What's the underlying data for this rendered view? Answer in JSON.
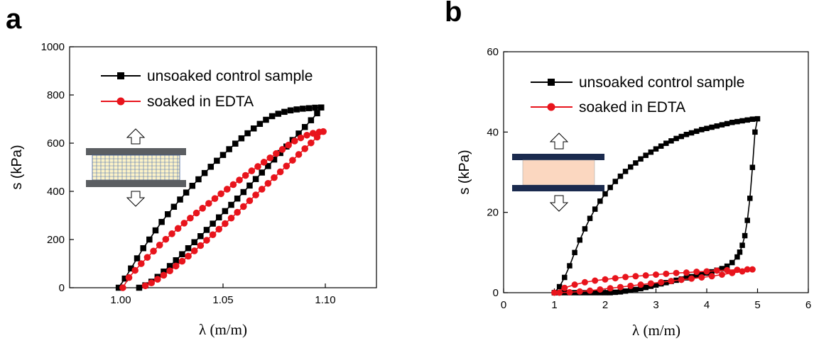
{
  "figure": {
    "panel_a_letter": "a",
    "panel_b_letter": "b"
  },
  "chart_data": [
    {
      "type": "line",
      "panel": "a",
      "xlabel": "λ (m/m)",
      "ylabel": "s (kPa)",
      "xlim": [
        0.975,
        1.125
      ],
      "ylim": [
        0,
        1000
      ],
      "xticks": [
        1.0,
        1.05,
        1.1
      ],
      "xtick_labels": [
        "1.00",
        "1.05",
        "1.10"
      ],
      "yticks": [
        0,
        200,
        400,
        600,
        800,
        1000
      ],
      "ytick_labels": [
        "0",
        "200",
        "400",
        "600",
        "800",
        "1000"
      ],
      "legend_position": "top-left",
      "grid": false,
      "series": [
        {
          "name": "unsoaked control sample",
          "color": "#000000",
          "marker": "square",
          "x": [
            0.999,
            1.002,
            1.005,
            1.008,
            1.011,
            1.014,
            1.017,
            1.02,
            1.023,
            1.026,
            1.029,
            1.032,
            1.035,
            1.038,
            1.041,
            1.044,
            1.047,
            1.05,
            1.053,
            1.056,
            1.059,
            1.062,
            1.065,
            1.068,
            1.071,
            1.074,
            1.077,
            1.08,
            1.083,
            1.086,
            1.089,
            1.092,
            1.095,
            1.098,
            1.096,
            1.093,
            1.09,
            1.087,
            1.084,
            1.081,
            1.078,
            1.075,
            1.072,
            1.069,
            1.066,
            1.063,
            1.06,
            1.057,
            1.054,
            1.051,
            1.048,
            1.045,
            1.042,
            1.039,
            1.036,
            1.033,
            1.03,
            1.027,
            1.024,
            1.021,
            1.018,
            1.015,
            1.012,
            1.009
          ],
          "y": [
            0,
            38,
            80,
            122,
            164,
            200,
            238,
            273,
            305,
            336,
            366,
            395,
            423,
            450,
            476,
            502,
            527,
            551,
            575,
            598,
            620,
            641,
            661,
            680,
            697,
            712,
            722,
            730,
            736,
            740,
            743,
            745,
            747,
            748,
            724,
            695,
            667,
            640,
            613,
            586,
            559,
            532,
            505,
            478,
            451,
            424,
            397,
            370,
            344,
            318,
            292,
            266,
            240,
            214,
            189,
            164,
            139,
            114,
            90,
            67,
            45,
            25,
            10,
            0
          ]
        },
        {
          "name": "soaked in EDTA",
          "color": "#e8141c",
          "marker": "circle",
          "x": [
            1.001,
            1.004,
            1.007,
            1.01,
            1.013,
            1.016,
            1.019,
            1.022,
            1.025,
            1.028,
            1.031,
            1.034,
            1.037,
            1.04,
            1.043,
            1.046,
            1.049,
            1.052,
            1.055,
            1.058,
            1.061,
            1.064,
            1.067,
            1.07,
            1.073,
            1.076,
            1.079,
            1.082,
            1.085,
            1.088,
            1.091,
            1.094,
            1.097,
            1.099,
            1.096,
            1.093,
            1.09,
            1.087,
            1.084,
            1.081,
            1.078,
            1.075,
            1.072,
            1.069,
            1.066,
            1.063,
            1.06,
            1.057,
            1.054,
            1.051,
            1.048,
            1.045,
            1.042,
            1.039,
            1.036,
            1.033,
            1.03,
            1.027,
            1.024,
            1.021,
            1.018,
            1.015,
            1.012
          ],
          "y": [
            0,
            42,
            72,
            100,
            126,
            152,
            177,
            201,
            224,
            246,
            268,
            289,
            310,
            330,
            350,
            370,
            390,
            409,
            428,
            447,
            466,
            485,
            503,
            521,
            539,
            557,
            574,
            592,
            609,
            622,
            633,
            641,
            646,
            648,
            625,
            601,
            577,
            553,
            529,
            505,
            481,
            457,
            433,
            409,
            385,
            361,
            337,
            313,
            289,
            266,
            243,
            220,
            197,
            175,
            153,
            131,
            110,
            90,
            70,
            52,
            35,
            20,
            8
          ]
        }
      ]
    },
    {
      "type": "line",
      "panel": "b",
      "xlabel": "λ (m/m)",
      "ylabel": "s (kPa)",
      "xlim": [
        0,
        6
      ],
      "ylim": [
        0,
        60
      ],
      "xticks": [
        0,
        1,
        2,
        3,
        4,
        5,
        6
      ],
      "xtick_labels": [
        "0",
        "1",
        "2",
        "3",
        "4",
        "5",
        "6"
      ],
      "yticks": [
        0,
        20,
        40,
        60
      ],
      "ytick_labels": [
        "0",
        "20",
        "40",
        "60"
      ],
      "legend_position": "top-left",
      "grid": false,
      "series": [
        {
          "name": "unsoaked control sample",
          "color": "#000000",
          "marker": "square",
          "x": [
            1.0,
            1.1,
            1.2,
            1.3,
            1.4,
            1.5,
            1.6,
            1.7,
            1.8,
            1.9,
            2.0,
            2.1,
            2.2,
            2.3,
            2.4,
            2.5,
            2.6,
            2.7,
            2.8,
            2.9,
            3.0,
            3.1,
            3.2,
            3.3,
            3.4,
            3.5,
            3.6,
            3.7,
            3.8,
            3.9,
            4.0,
            4.1,
            4.2,
            4.3,
            4.4,
            4.5,
            4.6,
            4.7,
            4.8,
            4.9,
            5.0,
            4.95,
            4.9,
            4.85,
            4.8,
            4.75,
            4.7,
            4.65,
            4.6,
            4.5,
            4.4,
            4.3,
            4.2,
            4.1,
            4.0,
            3.9,
            3.8,
            3.7,
            3.6,
            3.5,
            3.4,
            3.3,
            3.2,
            3.1,
            3.0,
            2.9,
            2.8,
            2.7,
            2.6,
            2.5,
            2.4,
            2.3,
            2.2,
            2.1,
            2.0,
            1.9,
            1.8,
            1.7,
            1.6,
            1.5,
            1.4,
            1.3,
            1.2,
            1.1,
            1.0
          ],
          "y": [
            0,
            1.5,
            3.8,
            6.7,
            10.0,
            13.1,
            15.9,
            18.5,
            20.8,
            22.8,
            24.6,
            26.2,
            27.7,
            29.0,
            30.2,
            31.3,
            32.3,
            33.3,
            34.2,
            35.0,
            35.8,
            36.5,
            37.2,
            37.8,
            38.4,
            38.9,
            39.4,
            39.8,
            40.2,
            40.6,
            40.9,
            41.2,
            41.5,
            41.8,
            42.1,
            42.4,
            42.6,
            42.8,
            43.0,
            43.2,
            43.3,
            40.0,
            31.2,
            23.5,
            18.0,
            14.2,
            11.8,
            10.1,
            8.9,
            7.5,
            6.6,
            6.0,
            5.6,
            5.2,
            4.9,
            4.6,
            4.3,
            4.0,
            3.7,
            3.4,
            3.1,
            2.8,
            2.5,
            2.2,
            1.9,
            1.6,
            1.3,
            1.0,
            0.8,
            0.6,
            0.4,
            0.2,
            0.1,
            0,
            0,
            0,
            0,
            0,
            0,
            0,
            0,
            0,
            0,
            0,
            0
          ]
        },
        {
          "name": "soaked in EDTA",
          "color": "#e8141c",
          "marker": "circle",
          "x": [
            1.0,
            1.2,
            1.4,
            1.6,
            1.8,
            2.0,
            2.2,
            2.4,
            2.6,
            2.8,
            3.0,
            3.2,
            3.4,
            3.6,
            3.8,
            4.0,
            4.2,
            4.4,
            4.6,
            4.8,
            4.9,
            4.7,
            4.5,
            4.3,
            4.1,
            3.9,
            3.7,
            3.5,
            3.3,
            3.1,
            2.9,
            2.7,
            2.5,
            2.3,
            2.1,
            1.9,
            1.7,
            1.5,
            1.3,
            1.1
          ],
          "y": [
            0,
            1.2,
            2.0,
            2.6,
            3.0,
            3.3,
            3.6,
            3.9,
            4.1,
            4.3,
            4.5,
            4.7,
            4.9,
            5.0,
            5.2,
            5.3,
            5.5,
            5.6,
            5.7,
            5.8,
            5.8,
            5.3,
            4.9,
            4.5,
            4.1,
            3.8,
            3.5,
            3.2,
            2.9,
            2.6,
            2.3,
            2.0,
            1.7,
            1.4,
            1.1,
            0.8,
            0.5,
            0.3,
            0.1,
            0
          ]
        }
      ]
    }
  ]
}
